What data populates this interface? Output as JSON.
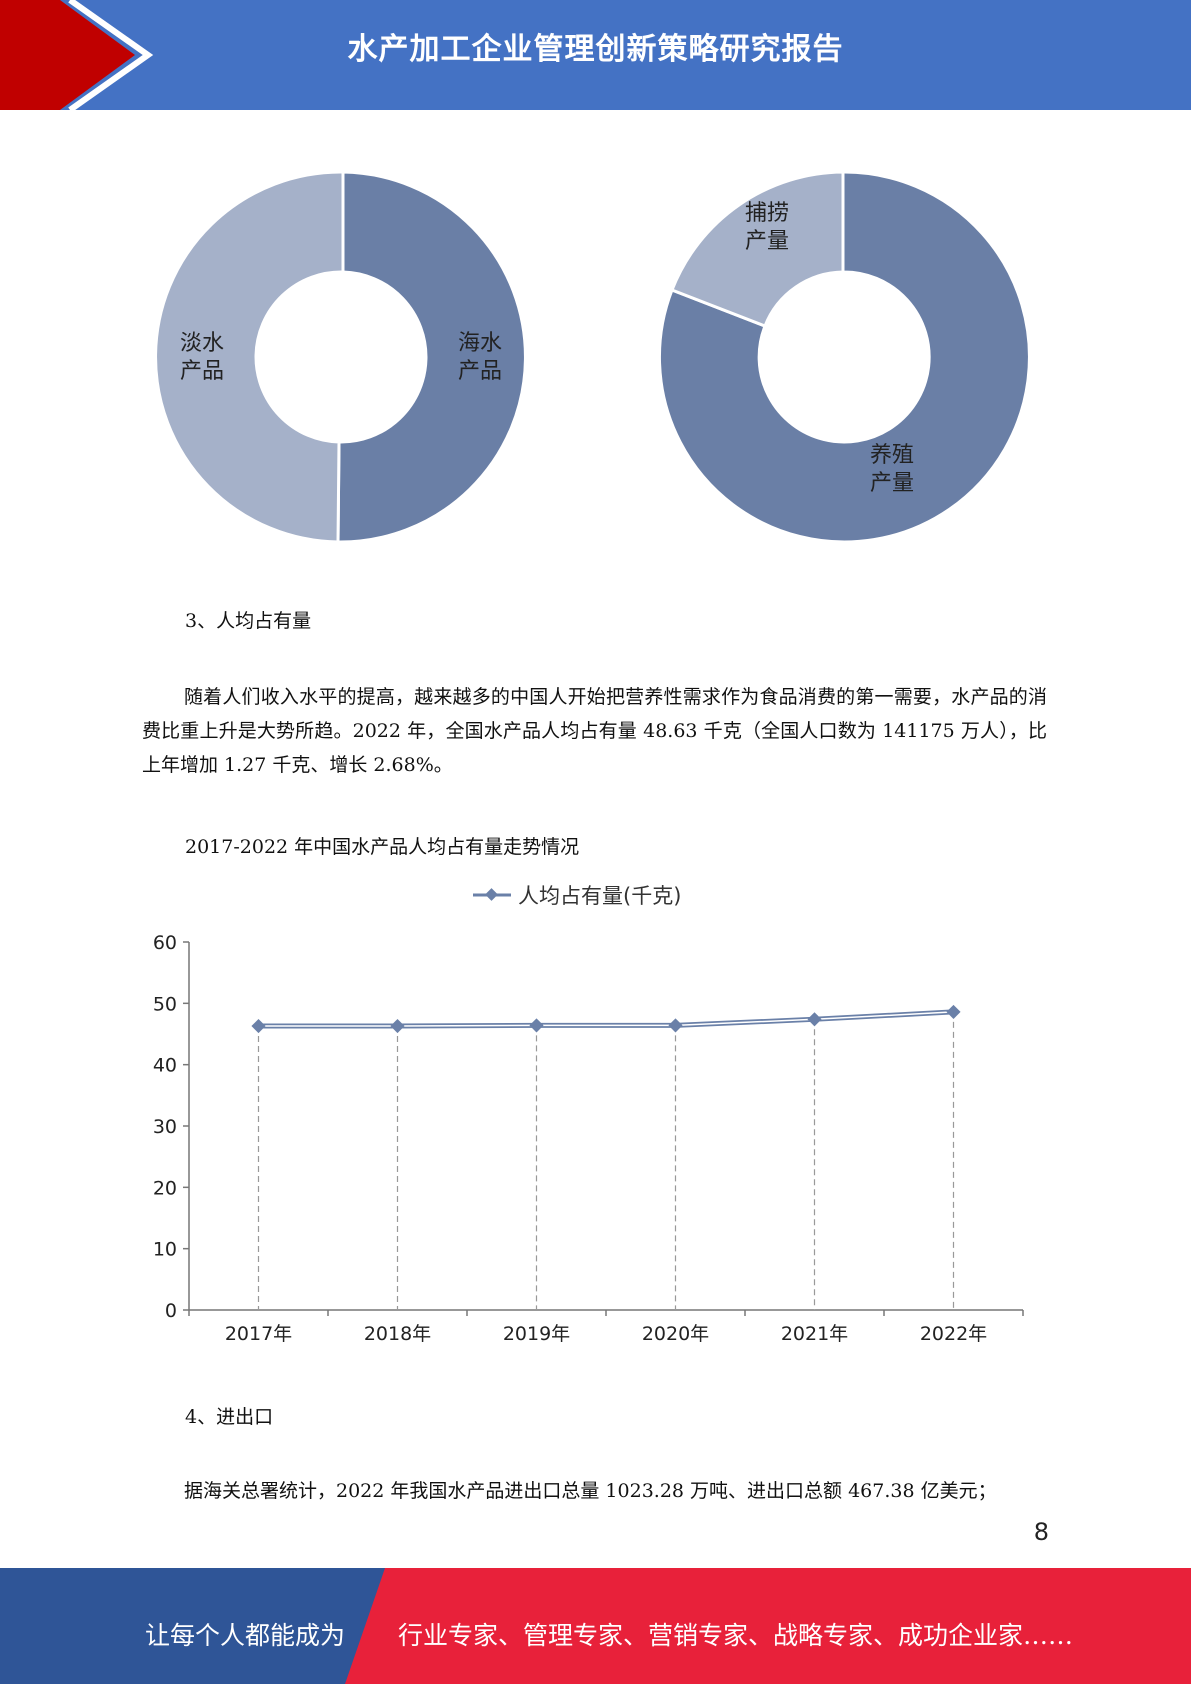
{
  "header": {
    "title": "水产加工企业管理创新策略研究报告",
    "accent_red": "#c00000",
    "bar_blue": "#4472c4"
  },
  "donut_left": {
    "slices": [
      {
        "label_line1": "海水",
        "label_line2": "产品",
        "share": 0.494
      },
      {
        "label_line1": "淡水",
        "label_line2": "产品",
        "share": 0.506
      }
    ]
  },
  "donut_right": {
    "slices": [
      {
        "label_line1": "养殖",
        "label_line2": "产量",
        "share": 0.838
      },
      {
        "label_line1": "捕捞",
        "label_line2": "产量",
        "share": 0.162
      }
    ]
  },
  "section3": {
    "heading": "3、人均占有量",
    "paragraph": "随着人们收入水平的提高，越来越多的中国人开始把营养性需求作为食品消费的第一需要，水产品的消费比重上升是大势所趋。2022 年，全国水产品人均占有量 48.63 千克（全国人口数为 141175 万人），比上年增加 1.27 千克、增长 2.68%。",
    "chart_caption": "2017-2022 年中国水产品人均占有量走势情况"
  },
  "chart_data": {
    "type": "line",
    "legend": "人均占有量(千克)",
    "categories": [
      "2017年",
      "2018年",
      "2019年",
      "2020年",
      "2021年",
      "2022年"
    ],
    "series": [
      {
        "name": "人均占有量(千克)",
        "values": [
          46.3,
          46.3,
          46.4,
          46.4,
          47.4,
          48.6
        ]
      }
    ],
    "ylim": [
      0,
      60
    ],
    "yticks": [
      "0",
      "10",
      "20",
      "30",
      "40",
      "50",
      "60"
    ],
    "grid": false,
    "line_color": "#6a80a8"
  },
  "section4": {
    "heading": "4、进出口",
    "paragraph": "据海关总署统计，2022 年我国水产品进出口总量 1023.28 万吨、进出口总额 467.38 亿美元；"
  },
  "page_number": "8",
  "footer": {
    "left_text": "让每个人都能成为",
    "right_text": "行业专家、管理专家、营销专家、战略专家、成功企业家……",
    "left_color": "#2f5597",
    "right_color": "#e8213a"
  }
}
